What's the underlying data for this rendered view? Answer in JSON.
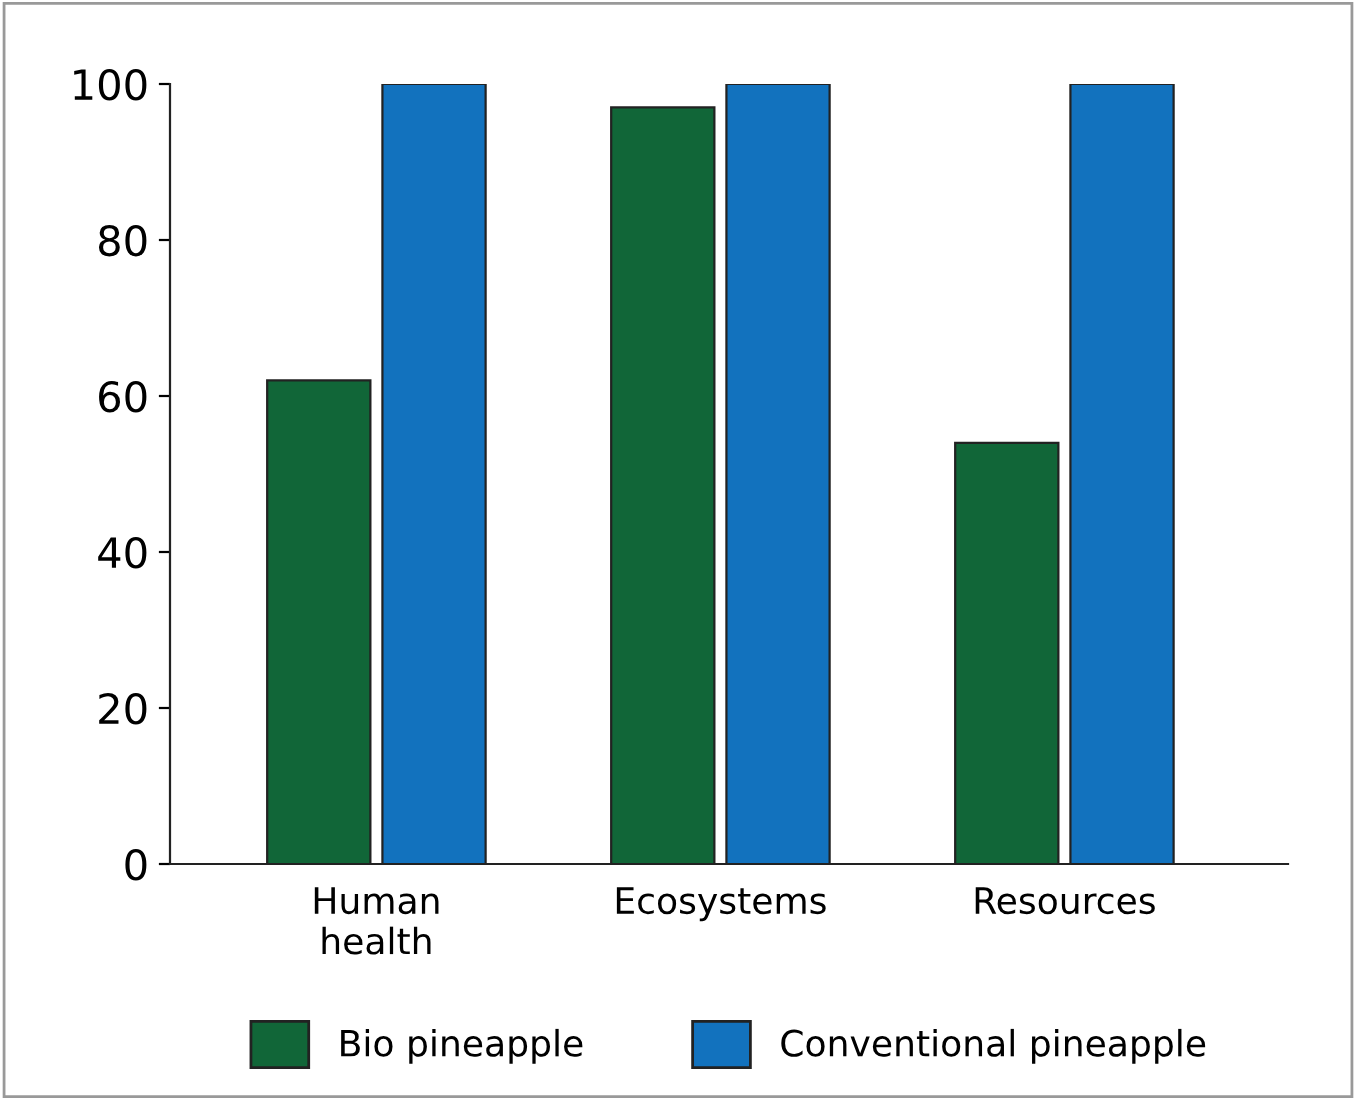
{
  "chart_data": {
    "type": "bar",
    "categories": [
      "Human\nhealth",
      "Ecosystems",
      "Resources"
    ],
    "series": [
      {
        "name": "Bio pineapple",
        "color": "#116638",
        "values": [
          62,
          97,
          54
        ]
      },
      {
        "name": "Conventional pineapple",
        "color": "#1272be",
        "values": [
          100,
          100,
          100
        ]
      }
    ],
    "ylim": [
      0,
      100
    ],
    "yticks": [
      0,
      20,
      40,
      60,
      80,
      100
    ],
    "grid": false,
    "legend": "bottom"
  }
}
